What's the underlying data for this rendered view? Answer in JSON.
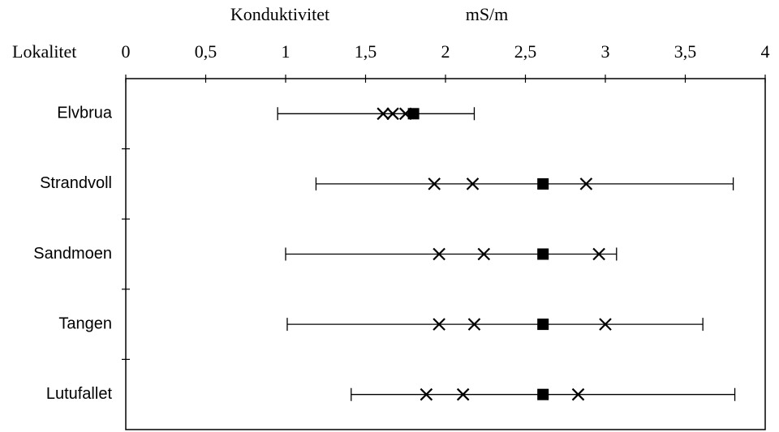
{
  "chart_data": {
    "type": "range",
    "x_label": "Konduktivitet",
    "unit": "mS/m",
    "y_label": "Lokalitet",
    "categories": [
      "Elvbrua",
      "Strandvoll",
      "Sandmoen",
      "Tangen",
      "Lutufallet"
    ],
    "min": [
      0.95,
      1.19,
      1.0,
      1.01,
      1.41
    ],
    "max": [
      2.18,
      3.8,
      3.07,
      3.61,
      3.81
    ],
    "crosses": [
      [
        1.61,
        1.67,
        1.75
      ],
      [
        1.93,
        2.17,
        2.88
      ],
      [
        1.96,
        2.24,
        2.96
      ],
      [
        1.96,
        2.18,
        3.0
      ],
      [
        1.88,
        2.11,
        2.83
      ]
    ],
    "squares": [
      1.8,
      2.61,
      2.61,
      2.61,
      2.61
    ],
    "color": "#000000",
    "xlim": [
      0,
      4
    ],
    "xticks": [
      0,
      {
        "value": 0.5,
        "label": "0,5"
      },
      1,
      {
        "value": 1.5,
        "label": "1,5"
      },
      2,
      {
        "value": 2.5,
        "label": "2,5"
      },
      3,
      {
        "value": 3.5,
        "label": "3,5"
      },
      4
    ]
  }
}
